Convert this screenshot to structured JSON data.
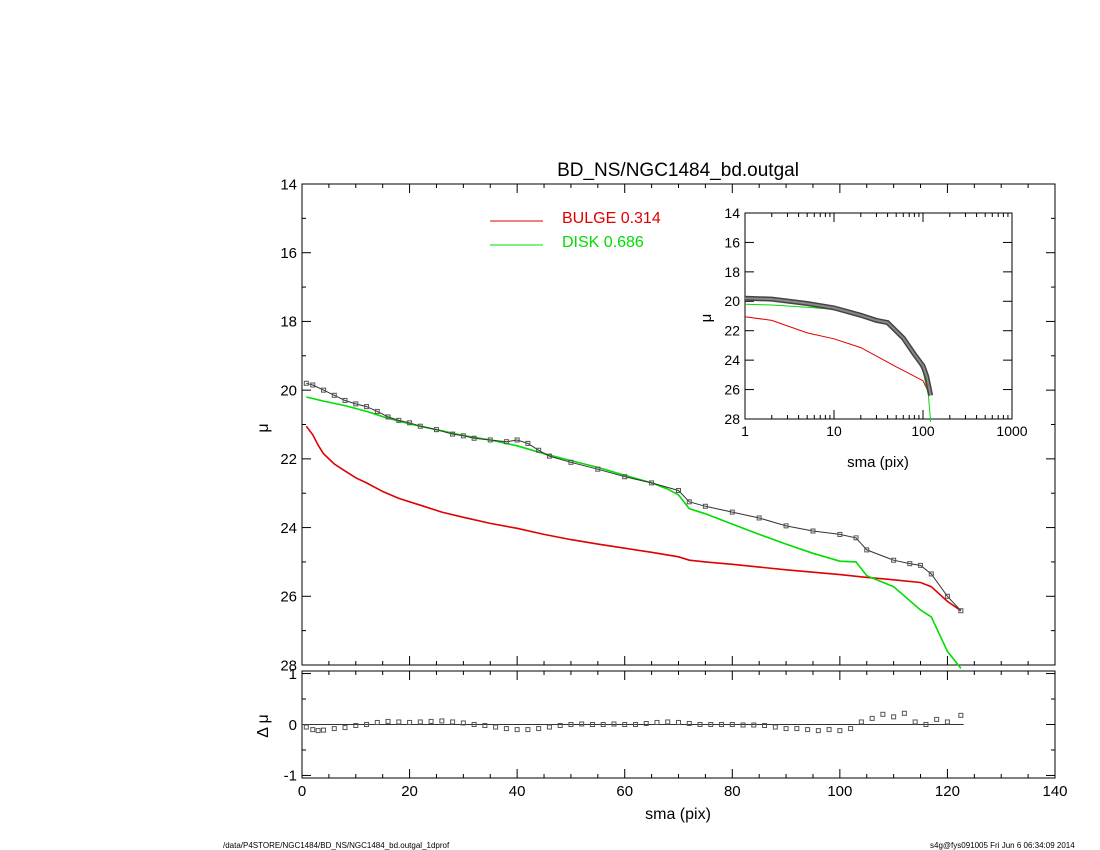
{
  "footer": {
    "path": "/data/P4STORE/NGC1484/BD_NS/NGC1484_bd.outgal_1dprof",
    "stamp": "s4g@fys091005  Fri Jun  6 06:34:09 2014"
  },
  "colors": {
    "bulge": "#e00000",
    "disk": "#00dd00",
    "data": "#555555",
    "axes": "#000000"
  },
  "chart_data": [
    {
      "id": "main",
      "type": "line",
      "title": "BD_NS/NGC1484_bd.outgal",
      "xlabel": "",
      "ylabel": "μ",
      "xlim": [
        0,
        140
      ],
      "ylim": [
        28,
        14
      ],
      "y_reversed": true,
      "yticks": [
        14,
        16,
        18,
        20,
        22,
        24,
        26,
        28
      ],
      "legend": {
        "placement": "top-center",
        "entries": [
          {
            "label": "BULGE  0.314",
            "series": "bulge"
          },
          {
            "label": "DISK  0.686",
            "series": "disk"
          }
        ]
      },
      "series": [
        {
          "name": "BULGE",
          "key": "bulge",
          "style": "line",
          "x": [
            0.8,
            2,
            3,
            4,
            6,
            8,
            10,
            12,
            15,
            18,
            22,
            26,
            30,
            35,
            40,
            45,
            50,
            55,
            60,
            65,
            70,
            72,
            75,
            80,
            85,
            90,
            95,
            100,
            105,
            110,
            115,
            117,
            120,
            122.5
          ],
          "y": [
            21.05,
            21.3,
            21.6,
            21.85,
            22.15,
            22.35,
            22.55,
            22.7,
            22.95,
            23.15,
            23.35,
            23.55,
            23.7,
            23.88,
            24.02,
            24.2,
            24.35,
            24.48,
            24.6,
            24.72,
            24.85,
            24.95,
            25.0,
            25.07,
            25.15,
            25.23,
            25.3,
            25.37,
            25.45,
            25.52,
            25.6,
            25.72,
            26.15,
            26.42
          ]
        },
        {
          "name": "DISK",
          "key": "disk",
          "style": "line",
          "x": [
            0.8,
            4,
            8,
            12,
            16,
            20,
            25,
            30,
            35,
            40,
            45,
            50,
            55,
            60,
            65,
            68,
            70,
            72,
            75,
            80,
            85,
            90,
            95,
            100,
            103,
            105,
            110,
            115,
            117,
            120,
            122.5
          ],
          "y": [
            20.2,
            20.32,
            20.45,
            20.62,
            20.82,
            20.98,
            21.15,
            21.32,
            21.45,
            21.62,
            21.85,
            22.05,
            22.25,
            22.48,
            22.7,
            22.88,
            23.05,
            23.45,
            23.6,
            23.9,
            24.2,
            24.48,
            24.75,
            24.98,
            25.0,
            25.4,
            25.72,
            26.4,
            26.6,
            27.6,
            28.1
          ]
        },
        {
          "name": "data",
          "key": "data",
          "style": "line-markers",
          "x": [
            0.8,
            2,
            4,
            6,
            8,
            10,
            12,
            14,
            16,
            18,
            20,
            22,
            25,
            28,
            30,
            32,
            35,
            38,
            40,
            42,
            44,
            46,
            50,
            55,
            60,
            65,
            70,
            72,
            75,
            80,
            85,
            90,
            95,
            100,
            103,
            105,
            110,
            113,
            115,
            117,
            120,
            122.5
          ],
          "y": [
            19.8,
            19.85,
            20.0,
            20.15,
            20.3,
            20.4,
            20.48,
            20.62,
            20.78,
            20.88,
            20.95,
            21.05,
            21.15,
            21.28,
            21.33,
            21.4,
            21.45,
            21.5,
            21.45,
            21.55,
            21.75,
            21.92,
            22.1,
            22.3,
            22.52,
            22.7,
            22.92,
            23.25,
            23.38,
            23.55,
            23.72,
            23.95,
            24.1,
            24.2,
            24.3,
            24.65,
            24.95,
            25.05,
            25.1,
            25.35,
            26.0,
            26.42
          ]
        }
      ]
    },
    {
      "id": "residual",
      "type": "scatter",
      "xlabel": "sma (pix)",
      "ylabel": "Δ μ",
      "xlim": [
        0,
        140
      ],
      "ylim": [
        -1.05,
        1.05
      ],
      "xticks": [
        0,
        20,
        40,
        60,
        80,
        100,
        120,
        140
      ],
      "yticks": [
        -1,
        0,
        1
      ],
      "reference_line": 0,
      "series": [
        {
          "name": "residual",
          "key": "data",
          "x": [
            0.8,
            2,
            3,
            4,
            6,
            8,
            10,
            12,
            14,
            16,
            18,
            20,
            22,
            24,
            26,
            28,
            30,
            32,
            34,
            36,
            38,
            40,
            42,
            44,
            46,
            48,
            50,
            52,
            54,
            56,
            58,
            60,
            62,
            64,
            66,
            68,
            70,
            72,
            74,
            76,
            78,
            80,
            82,
            84,
            86,
            88,
            90,
            92,
            94,
            96,
            98,
            100,
            102,
            104,
            106,
            108,
            110,
            112,
            114,
            116,
            118,
            120,
            122.5
          ],
          "y": [
            -0.05,
            -0.1,
            -0.12,
            -0.11,
            -0.08,
            -0.06,
            -0.02,
            0.0,
            0.04,
            0.06,
            0.05,
            0.04,
            0.05,
            0.06,
            0.07,
            0.05,
            0.03,
            0.0,
            -0.02,
            -0.05,
            -0.08,
            -0.1,
            -0.1,
            -0.08,
            -0.05,
            -0.02,
            0.0,
            0.01,
            0.0,
            0.0,
            0.01,
            0.0,
            0.0,
            0.02,
            0.04,
            0.05,
            0.04,
            0.02,
            0.0,
            0.0,
            0.0,
            0.0,
            -0.01,
            -0.01,
            -0.02,
            -0.05,
            -0.08,
            -0.08,
            -0.1,
            -0.12,
            -0.1,
            -0.12,
            -0.08,
            0.05,
            0.12,
            0.2,
            0.15,
            0.22,
            0.05,
            0.0,
            0.1,
            0.05,
            0.18
          ]
        }
      ]
    },
    {
      "id": "inset",
      "type": "line",
      "xlabel": "sma (pix)",
      "ylabel": "μ",
      "xscale": "log",
      "xlim": [
        1,
        1000
      ],
      "ylim": [
        28,
        14
      ],
      "y_reversed": true,
      "xticks": [
        1,
        10,
        100,
        1000
      ],
      "yticks": [
        14,
        16,
        18,
        20,
        22,
        24,
        26,
        28
      ],
      "series": [
        {
          "key": "bulge",
          "x": [
            1,
            2,
            5,
            10,
            20,
            50,
            100,
            120
          ],
          "y": [
            21.05,
            21.3,
            22.15,
            22.55,
            23.15,
            24.45,
            25.4,
            26.4
          ]
        },
        {
          "key": "disk",
          "x": [
            1,
            2,
            5,
            10,
            20,
            40,
            70,
            100,
            115,
            122
          ],
          "y": [
            20.2,
            20.25,
            20.4,
            20.55,
            20.95,
            21.5,
            22.9,
            24.75,
            26.4,
            28.2
          ]
        },
        {
          "key": "data",
          "x": [
            1,
            2,
            5,
            10,
            20,
            30,
            40,
            60,
            80,
            100,
            110,
            122
          ],
          "y": [
            19.8,
            19.85,
            20.15,
            20.45,
            20.95,
            21.3,
            21.45,
            22.5,
            23.6,
            24.4,
            25.1,
            26.4
          ]
        }
      ]
    }
  ]
}
